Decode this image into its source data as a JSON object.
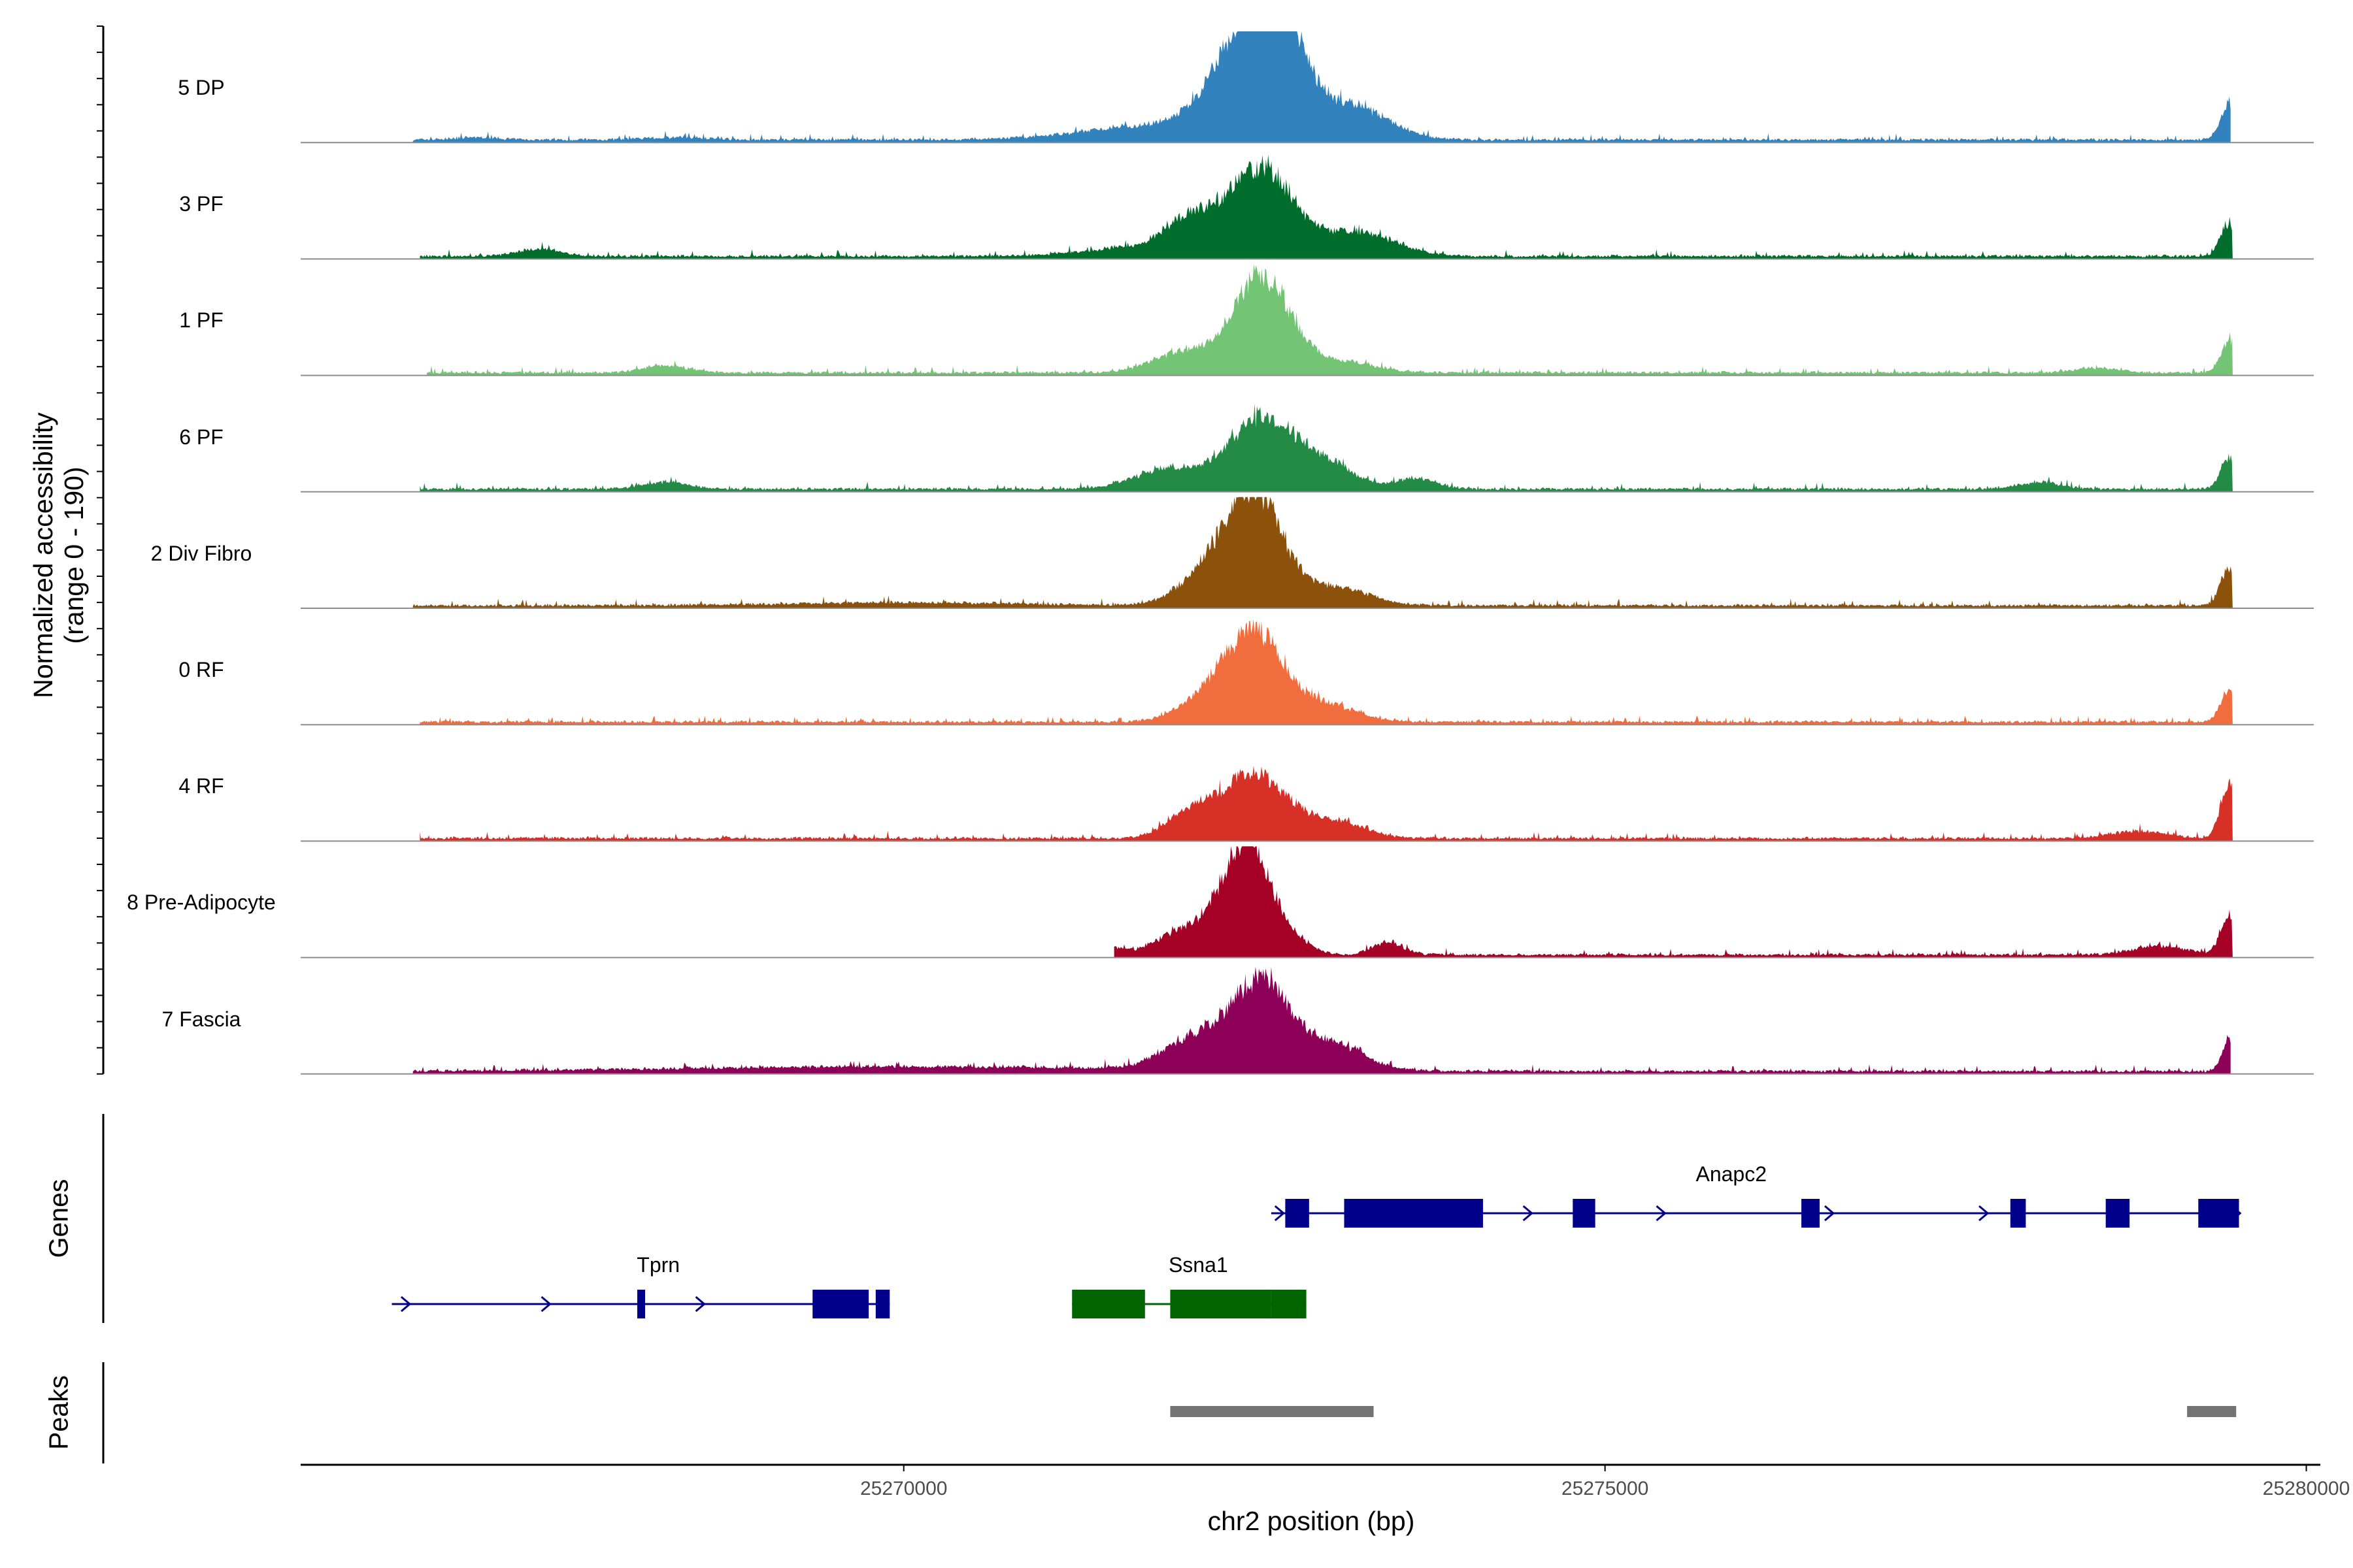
{
  "chart_data": {
    "type": "area",
    "title": "",
    "ylabel_line1": "Normalized accessibility",
    "ylabel_line2": "(range 0 - 190)",
    "xlabel": "chr2 position (bp)",
    "xlim": [
      25265700,
      25280100
    ],
    "y_range": [
      0,
      190
    ],
    "x_ticks": [
      25270000,
      25275000,
      25280000
    ],
    "x_tick_labels": [
      "25270000",
      "25275000",
      "25280000"
    ],
    "panels": {
      "genes_label": "Genes",
      "peaks_label": "Peaks"
    },
    "tracks": [
      {
        "name": "5 DP",
        "color": "#3182bd",
        "start": 25266500,
        "end": 25279460,
        "components": [
          [
            25272500,
            190,
            260
          ],
          [
            25272680,
            105,
            160
          ],
          [
            25273200,
            55,
            260
          ],
          [
            25271800,
            25,
            500
          ],
          [
            25279450,
            60,
            60
          ],
          [
            25268400,
            4,
            200
          ],
          [
            25266950,
            4,
            150
          ]
        ]
      },
      {
        "name": "3 PF",
        "color": "#006d2c",
        "start": 25266550,
        "end": 25279475,
        "components": [
          [
            25272550,
            150,
            230
          ],
          [
            25272050,
            55,
            180
          ],
          [
            25273250,
            40,
            260
          ],
          [
            25267400,
            12,
            150
          ],
          [
            25279450,
            55,
            60
          ],
          [
            25271700,
            15,
            400
          ]
        ]
      },
      {
        "name": "1 PF",
        "color": "#74c476",
        "start": 25266600,
        "end": 25279475,
        "components": [
          [
            25272550,
            165,
            200
          ],
          [
            25272000,
            35,
            220
          ],
          [
            25273100,
            20,
            240
          ],
          [
            25268300,
            12,
            160
          ],
          [
            25279450,
            55,
            60
          ],
          [
            25278500,
            8,
            150
          ]
        ]
      },
      {
        "name": "6 PF",
        "color": "#238b45",
        "start": 25266550,
        "end": 25279475,
        "components": [
          [
            25272550,
            120,
            220
          ],
          [
            25271900,
            35,
            250
          ],
          [
            25273000,
            45,
            200
          ],
          [
            25273650,
            18,
            150
          ],
          [
            25268300,
            12,
            160
          ],
          [
            25279450,
            55,
            60
          ],
          [
            25278100,
            12,
            150
          ]
        ]
      },
      {
        "name": "2 Div Fibro",
        "color": "#8c510a",
        "start": 25266500,
        "end": 25279475,
        "components": [
          [
            25272500,
            190,
            200
          ],
          [
            25272150,
            45,
            200
          ],
          [
            25273100,
            30,
            230
          ],
          [
            25279450,
            65,
            60
          ],
          [
            25270000,
            5,
            800
          ]
        ]
      },
      {
        "name": "0 RF",
        "color": "#f26d3d",
        "start": 25266550,
        "end": 25279475,
        "components": [
          [
            25272500,
            150,
            200
          ],
          [
            25272150,
            35,
            200
          ],
          [
            25273000,
            30,
            220
          ],
          [
            25279450,
            55,
            60
          ]
        ]
      },
      {
        "name": "4 RF",
        "color": "#d73027",
        "start": 25266550,
        "end": 25279475,
        "components": [
          [
            25272500,
            110,
            220
          ],
          [
            25272050,
            45,
            170
          ],
          [
            25273050,
            30,
            220
          ],
          [
            25279450,
            90,
            60
          ],
          [
            25278800,
            12,
            200
          ]
        ]
      },
      {
        "name": "8 Pre-Adipocyte",
        "color": "#a50026",
        "start": 25271500,
        "end": 25279475,
        "components": [
          [
            25272450,
            190,
            180
          ],
          [
            25272000,
            40,
            200
          ],
          [
            25273450,
            22,
            110
          ],
          [
            25272850,
            12,
            100
          ],
          [
            25279450,
            70,
            60
          ],
          [
            25278950,
            15,
            180
          ],
          [
            25271500,
            10,
            80
          ]
        ]
      },
      {
        "name": "7 Fascia",
        "color": "#8c0057",
        "start": 25266500,
        "end": 25279460,
        "components": [
          [
            25272550,
            145,
            200
          ],
          [
            25272100,
            55,
            230
          ],
          [
            25273050,
            45,
            230
          ],
          [
            25279450,
            55,
            50
          ],
          [
            25270000,
            8,
            1500
          ]
        ]
      }
    ],
    "genes": [
      {
        "name": "Tprn",
        "color": "#00008b",
        "row": 2,
        "strand": "+",
        "start": 25266350,
        "end": 25269900,
        "exons": [
          [
            25268100,
            25268150
          ],
          [
            25269350,
            25269750
          ],
          [
            25269800,
            25269900
          ]
        ],
        "arrows": [
          25266450,
          25267450,
          25268550
        ]
      },
      {
        "name": "Ssna1",
        "color": "#006400",
        "row": 2,
        "strand": "+",
        "start": 25271200,
        "end": 25272870,
        "exons": [
          [
            25271200,
            25271720
          ],
          [
            25271900,
            25272620
          ],
          [
            25272620,
            25272870
          ]
        ],
        "arrows": []
      },
      {
        "name": "Anapc2",
        "color": "#00008b",
        "row": 1,
        "strand": "+",
        "start": 25272620,
        "end": 25279460,
        "exons": [
          [
            25272720,
            25272890
          ],
          [
            25273140,
            25274130
          ],
          [
            25274770,
            25274930
          ],
          [
            25276400,
            25276530
          ],
          [
            25277890,
            25278000
          ],
          [
            25278570,
            25278740
          ],
          [
            25279230,
            25279520
          ]
        ],
        "arrows": [
          25272680,
          25274450,
          25275400,
          25276600,
          25277700,
          25279500
        ]
      }
    ],
    "peaks": [
      [
        25271900,
        25273350
      ],
      [
        25279150,
        25279500
      ]
    ]
  }
}
